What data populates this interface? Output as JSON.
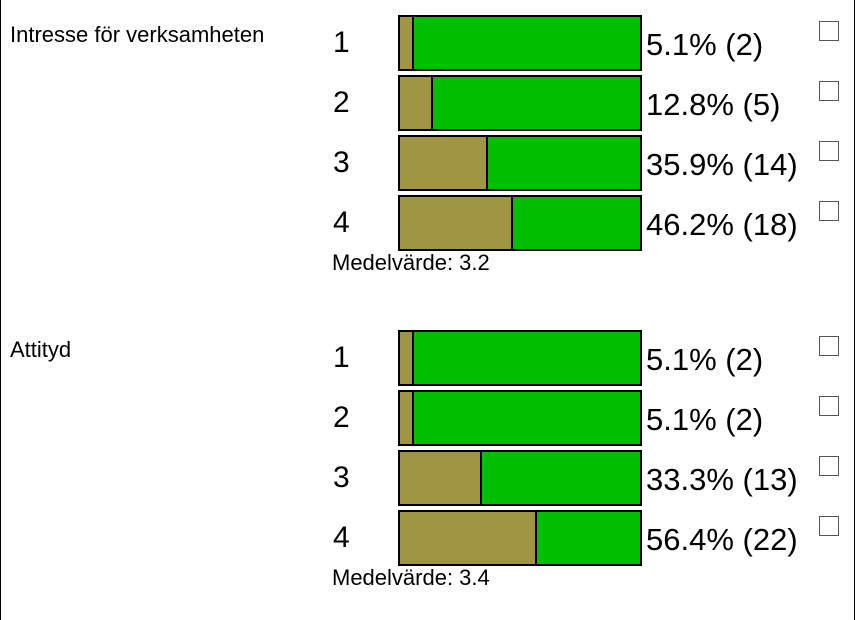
{
  "chart_data": [
    {
      "type": "bar",
      "title": "Intresse för verksamheten",
      "categories": [
        "1",
        "2",
        "3",
        "4"
      ],
      "values": [
        5.1,
        12.8,
        35.9,
        46.2
      ],
      "counts": [
        2,
        5,
        14,
        18
      ],
      "labels": [
        "5.1% (2)",
        "12.8% (5)",
        "35.9% (14)",
        "46.2% (18)"
      ],
      "mean_label": "Medelvärde: 3.2",
      "ylim": [
        0,
        100
      ],
      "colors": {
        "filled": "#a09542",
        "rest": "#00bf00"
      }
    },
    {
      "type": "bar",
      "title": "Attityd",
      "categories": [
        "1",
        "2",
        "3",
        "4"
      ],
      "values": [
        5.1,
        5.1,
        33.3,
        56.4
      ],
      "counts": [
        2,
        2,
        13,
        22
      ],
      "labels": [
        "5.1% (2)",
        "5.1% (2)",
        "33.3% (13)",
        "56.4% (22)"
      ],
      "mean_label": "Medelvärde: 3.4",
      "ylim": [
        0,
        100
      ],
      "colors": {
        "filled": "#a09542",
        "rest": "#00bf00"
      }
    }
  ]
}
